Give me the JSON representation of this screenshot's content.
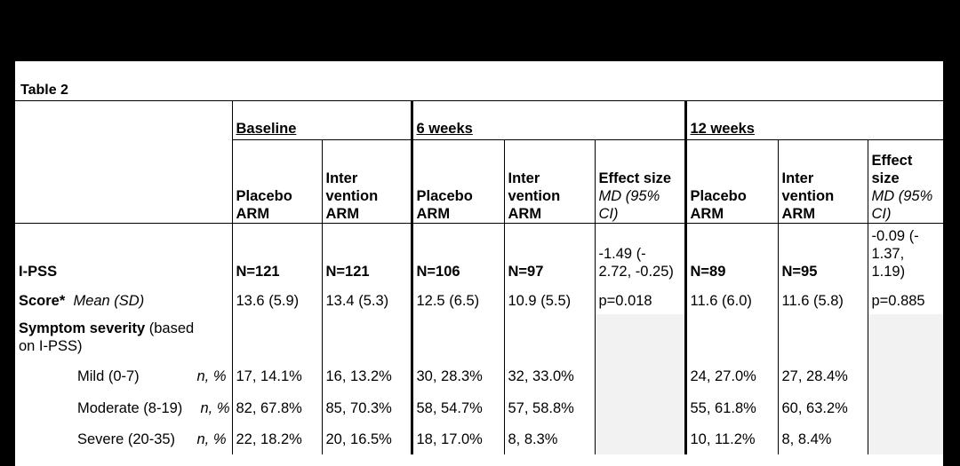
{
  "title": "Table 2",
  "groups": {
    "baseline": "Baseline",
    "w6": "6 weeks",
    "w12": "12 weeks"
  },
  "headers": {
    "placebo": [
      "Placebo",
      "ARM"
    ],
    "intervention": [
      "Inter",
      "vention",
      "ARM"
    ],
    "effect_w6": [
      "Effect size",
      "MD (95%",
      "CI)"
    ],
    "effect_w12": [
      "Effect",
      "size",
      "MD (95%",
      "CI)"
    ]
  },
  "ipss": {
    "label": "I-PSS",
    "n": [
      "N=121",
      "N=121",
      "N=106",
      "N=97",
      "N=89",
      "N=95"
    ],
    "effect_w6": [
      "-1.49 (-",
      "2.72, -0.25)"
    ],
    "effect_w12": [
      "-0.09 (-",
      "1.37,",
      "1.19)"
    ]
  },
  "score": {
    "label": "Score*",
    "stat": "Mean (SD)",
    "values": [
      "13.6 (5.9)",
      "13.4 (5.3)",
      "12.5 (6.5)",
      "10.9 (5.5)",
      "p=0.018",
      "11.6 (6.0)",
      "11.6 (5.8)",
      "p=0.885"
    ]
  },
  "severity": {
    "label_bold": "Symptom severity",
    "label_rest": " (based",
    "label_line2": "on I-PSS)"
  },
  "rows": [
    {
      "label": "Mild (0-7)",
      "stat": "n, %",
      "values": [
        "17, 14.1%",
        "16, 13.2%",
        "30, 28.3%",
        "32, 33.0%",
        "24, 27.0%",
        "27, 28.4%"
      ]
    },
    {
      "label": "Moderate (8-19)",
      "stat": "n, %",
      "values": [
        "82, 67.8%",
        "85, 70.3%",
        "58, 54.7%",
        "57, 58.8%",
        "55, 61.8%",
        "60, 63.2%"
      ]
    },
    {
      "label": "Severe (20-35)",
      "stat": "n, %",
      "values": [
        "22, 18.2%",
        "20, 16.5%",
        "18, 17.0%",
        "8, 8.3%",
        "10, 11.2%",
        "8, 8.4%"
      ]
    }
  ]
}
